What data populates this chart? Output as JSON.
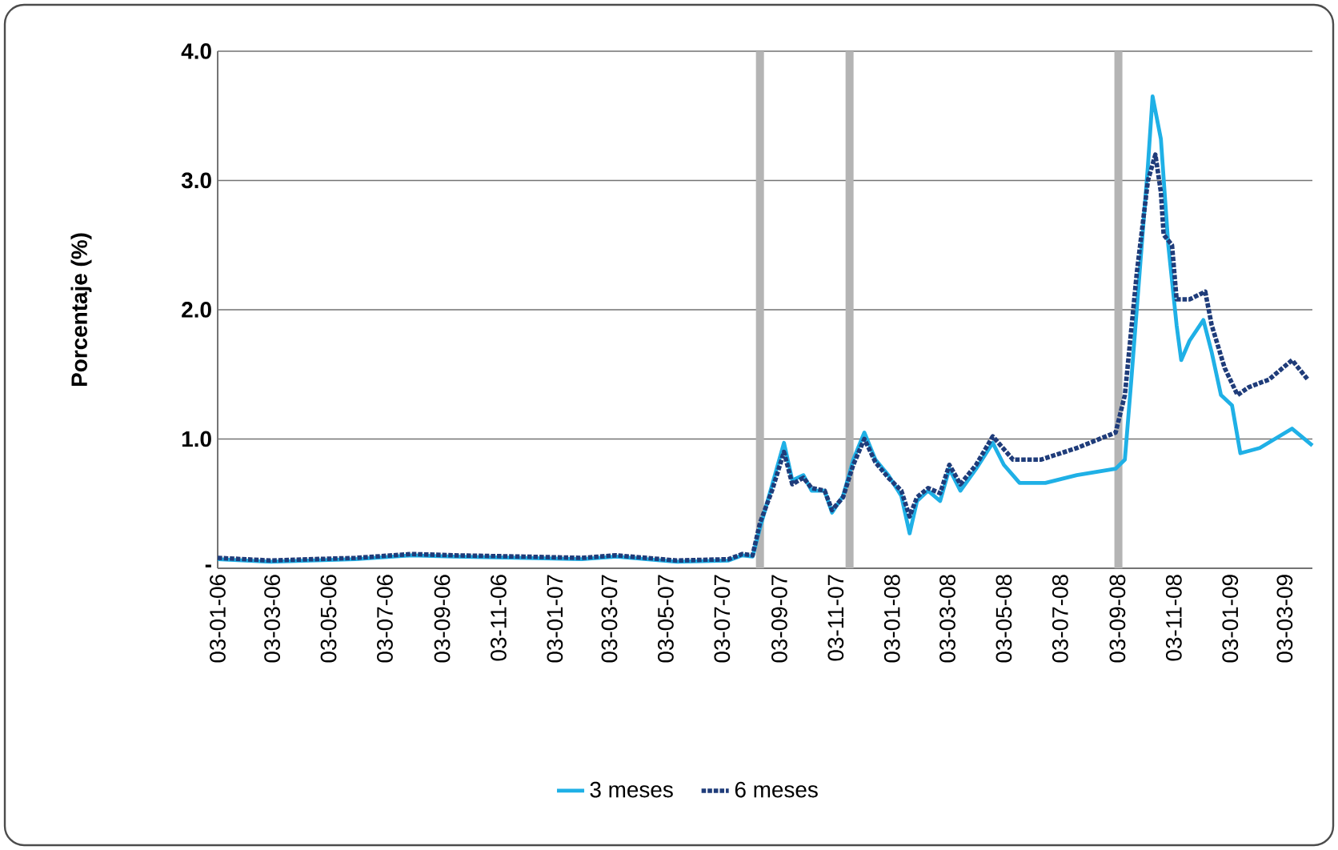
{
  "chart_data": {
    "type": "line",
    "ylabel": "Porcentaje (%)",
    "xlim": [
      "2006-01-03",
      "2009-04-02"
    ],
    "ylim": [
      0,
      4
    ],
    "xticks": [
      {
        "value": "2006-01-03",
        "label": "03-01-06"
      },
      {
        "value": "2006-03-03",
        "label": "03-03-06"
      },
      {
        "value": "2006-05-03",
        "label": "03-05-06"
      },
      {
        "value": "2006-07-03",
        "label": "03-07-06"
      },
      {
        "value": "2006-09-03",
        "label": "03-09-06"
      },
      {
        "value": "2006-11-03",
        "label": "03-11-06"
      },
      {
        "value": "2007-01-03",
        "label": "03-01-07"
      },
      {
        "value": "2007-03-03",
        "label": "03-03-07"
      },
      {
        "value": "2007-05-03",
        "label": "03-05-07"
      },
      {
        "value": "2007-07-03",
        "label": "03-07-07"
      },
      {
        "value": "2007-09-03",
        "label": "03-09-07"
      },
      {
        "value": "2007-11-03",
        "label": "03-11-07"
      },
      {
        "value": "2008-01-03",
        "label": "03-01-08"
      },
      {
        "value": "2008-03-03",
        "label": "03-03-08"
      },
      {
        "value": "2008-05-03",
        "label": "03-05-08"
      },
      {
        "value": "2008-07-03",
        "label": "03-07-08"
      },
      {
        "value": "2008-09-03",
        "label": "03-09-08"
      },
      {
        "value": "2008-11-03",
        "label": "03-11-08"
      },
      {
        "value": "2009-01-03",
        "label": "03-01-09"
      },
      {
        "value": "2009-03-03",
        "label": "03-03-09"
      }
    ],
    "yticks": [
      {
        "value": 0,
        "label": "-"
      },
      {
        "value": 1,
        "label": "1.0"
      },
      {
        "value": 2,
        "label": "2.0"
      },
      {
        "value": 3,
        "label": "3.0"
      },
      {
        "value": 4,
        "label": "4.0"
      }
    ],
    "grid": "y",
    "legend": "bottom",
    "ref_lines": [
      {
        "axis": "x",
        "value": "2007-08-13",
        "color": "#b4b4b4"
      },
      {
        "axis": "x",
        "value": "2007-11-18",
        "color": "#b4b4b4"
      },
      {
        "axis": "x",
        "value": "2008-09-04",
        "color": "#b4b4b4"
      }
    ],
    "series": [
      {
        "name": "3 meses",
        "color": "#1fb0e6",
        "line_style": "solid",
        "x": [
          "2006-01-03",
          "2006-03-01",
          "2006-06-01",
          "2006-08-01",
          "2006-09-15",
          "2006-12-01",
          "2007-02-01",
          "2007-03-10",
          "2007-05-15",
          "2007-07-10",
          "2007-07-25",
          "2007-08-05",
          "2007-08-13",
          "2007-08-26",
          "2007-09-08",
          "2007-09-17",
          "2007-09-29",
          "2007-10-08",
          "2007-10-22",
          "2007-10-30",
          "2007-11-11",
          "2007-11-22",
          "2007-12-04",
          "2007-12-16",
          "2007-12-30",
          "2008-01-13",
          "2008-01-22",
          "2008-01-30",
          "2008-02-11",
          "2008-02-24",
          "2008-03-05",
          "2008-03-17",
          "2008-04-03",
          "2008-04-21",
          "2008-05-03",
          "2008-05-20",
          "2008-06-17",
          "2008-07-21",
          "2008-09-01",
          "2008-09-11",
          "2008-09-18",
          "2008-09-27",
          "2008-10-06",
          "2008-10-11",
          "2008-10-20",
          "2008-10-28",
          "2008-11-06",
          "2008-11-11",
          "2008-11-20",
          "2008-12-05",
          "2008-12-14",
          "2008-12-24",
          "2009-01-05",
          "2009-01-14",
          "2009-02-04",
          "2009-03-11",
          "2009-04-02"
        ],
        "values": [
          0.07,
          0.05,
          0.07,
          0.1,
          0.09,
          0.08,
          0.07,
          0.09,
          0.05,
          0.06,
          0.1,
          0.09,
          0.31,
          0.64,
          0.97,
          0.68,
          0.72,
          0.6,
          0.6,
          0.43,
          0.56,
          0.84,
          1.05,
          0.84,
          0.72,
          0.56,
          0.27,
          0.52,
          0.6,
          0.52,
          0.77,
          0.6,
          0.77,
          0.97,
          0.8,
          0.66,
          0.66,
          0.72,
          0.77,
          0.84,
          1.46,
          2.29,
          3.12,
          3.65,
          3.32,
          2.5,
          1.88,
          1.61,
          1.76,
          1.92,
          1.67,
          1.34,
          1.26,
          0.89,
          0.93,
          1.08,
          0.95
        ]
      },
      {
        "name": "6 meses",
        "color": "#1f3c7a",
        "line_style": "dotted",
        "x": [
          "2006-01-03",
          "2006-03-01",
          "2006-06-01",
          "2006-08-01",
          "2006-09-15",
          "2006-12-01",
          "2007-02-01",
          "2007-03-10",
          "2007-05-15",
          "2007-07-10",
          "2007-07-25",
          "2007-08-05",
          "2007-08-13",
          "2007-08-26",
          "2007-09-08",
          "2007-09-17",
          "2007-09-29",
          "2007-10-08",
          "2007-10-22",
          "2007-10-30",
          "2007-11-11",
          "2007-11-22",
          "2007-12-04",
          "2007-12-16",
          "2007-12-30",
          "2008-01-13",
          "2008-01-22",
          "2008-01-30",
          "2008-02-11",
          "2008-02-24",
          "2008-03-05",
          "2008-03-17",
          "2008-04-03",
          "2008-04-21",
          "2008-05-13",
          "2008-06-12",
          "2008-07-21",
          "2008-09-01",
          "2008-09-11",
          "2008-09-24",
          "2008-10-06",
          "2008-10-14",
          "2008-10-20",
          "2008-10-23",
          "2008-11-01",
          "2008-11-06",
          "2008-11-20",
          "2008-12-07",
          "2008-12-14",
          "2008-12-28",
          "2009-01-11",
          "2009-01-23",
          "2009-02-14",
          "2009-03-11",
          "2009-03-28"
        ],
        "values": [
          0.08,
          0.06,
          0.08,
          0.11,
          0.1,
          0.09,
          0.08,
          0.1,
          0.06,
          0.07,
          0.11,
          0.1,
          0.35,
          0.6,
          0.9,
          0.65,
          0.7,
          0.62,
          0.6,
          0.45,
          0.55,
          0.8,
          1.0,
          0.82,
          0.7,
          0.6,
          0.4,
          0.55,
          0.62,
          0.58,
          0.8,
          0.65,
          0.8,
          1.02,
          0.84,
          0.84,
          0.93,
          1.05,
          1.34,
          2.29,
          3.0,
          3.2,
          2.91,
          2.58,
          2.5,
          2.08,
          2.08,
          2.14,
          1.88,
          1.55,
          1.34,
          1.4,
          1.46,
          1.61,
          1.46
        ]
      }
    ]
  }
}
